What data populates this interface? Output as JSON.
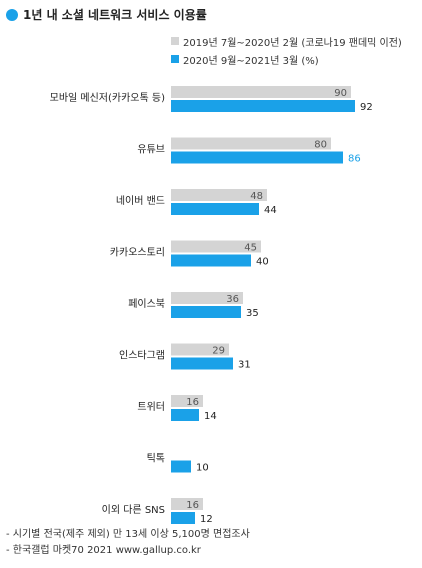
{
  "title": "1년 내 소셜 네트워크 서비스 이용률",
  "colors": {
    "accent": "#1aa1e8",
    "prev": "#d4d4d4",
    "curr": "#1aa1e8"
  },
  "legend": [
    {
      "label": "2019년 7월~2020년 2월 (코로나19 팬데믹 이전)"
    },
    {
      "label": "2020년 9월~2021년 3월 (%)"
    }
  ],
  "chart_data": {
    "type": "bar",
    "orientation": "horizontal",
    "title": "1년 내 소셜 네트워크 서비스 이용률",
    "categories": [
      "모바일 메신저(카카오톡 등)",
      "유튜브",
      "네이버 밴드",
      "카카오스토리",
      "페이스북",
      "인스타그램",
      "트위터",
      "틱톡",
      "이외 다른 SNS"
    ],
    "series": [
      {
        "name": "2019년 7월~2020년 2월 (코로나19 팬데믹 이전)",
        "values": [
          90,
          80,
          48,
          45,
          36,
          29,
          16,
          null,
          16
        ]
      },
      {
        "name": "2020년 9월~2021년 3월 (%)",
        "values": [
          92,
          86,
          44,
          40,
          35,
          31,
          14,
          10,
          12
        ]
      }
    ],
    "xlim": [
      0,
      100
    ],
    "grid": false,
    "legend_position": "top-right"
  },
  "notes": [
    "- 시기별 전국(제주 제외) 만 13세 이상 5,100명 면접조사",
    "- 한국갤럽 마켓70 2021 www.gallup.co.kr"
  ]
}
